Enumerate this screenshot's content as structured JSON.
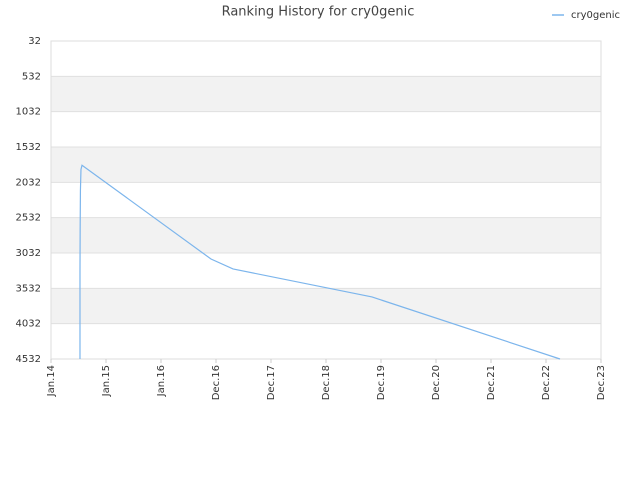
{
  "chart_data": {
    "type": "line",
    "title": "Ranking History for cry0genic",
    "x": [
      0.527,
      0.527,
      0.53,
      0.535,
      0.545,
      0.564,
      2.909,
      3.309,
      5.836,
      9.255
    ],
    "series": [
      {
        "name": "cry0genic",
        "color": "#7cb5ec",
        "values": [
          4532,
          3300,
          2700,
          2150,
          1850,
          1790,
          3117,
          3258,
          3654,
          4532
        ]
      }
    ],
    "xlim": [
      0,
      10
    ],
    "xticks": [
      {
        "value": 0,
        "label": "Jan.14"
      },
      {
        "value": 1,
        "label": "Jan.15"
      },
      {
        "value": 2,
        "label": "Jan.16"
      },
      {
        "value": 3,
        "label": "Dec.16"
      },
      {
        "value": 4,
        "label": "Dec.17"
      },
      {
        "value": 5,
        "label": "Dec.18"
      },
      {
        "value": 6,
        "label": "Dec.19"
      },
      {
        "value": 7,
        "label": "Dec.20"
      },
      {
        "value": 8,
        "label": "Dec.21"
      },
      {
        "value": 9,
        "label": "Dec.22"
      },
      {
        "value": 10,
        "label": "Dec.23"
      }
    ],
    "ylim": [
      32,
      4532
    ],
    "y_inverted": true,
    "yticks": [
      32,
      532,
      1032,
      1532,
      2032,
      2532,
      3032,
      3532,
      4032,
      4532
    ],
    "grid": true,
    "legend": "top-right"
  }
}
